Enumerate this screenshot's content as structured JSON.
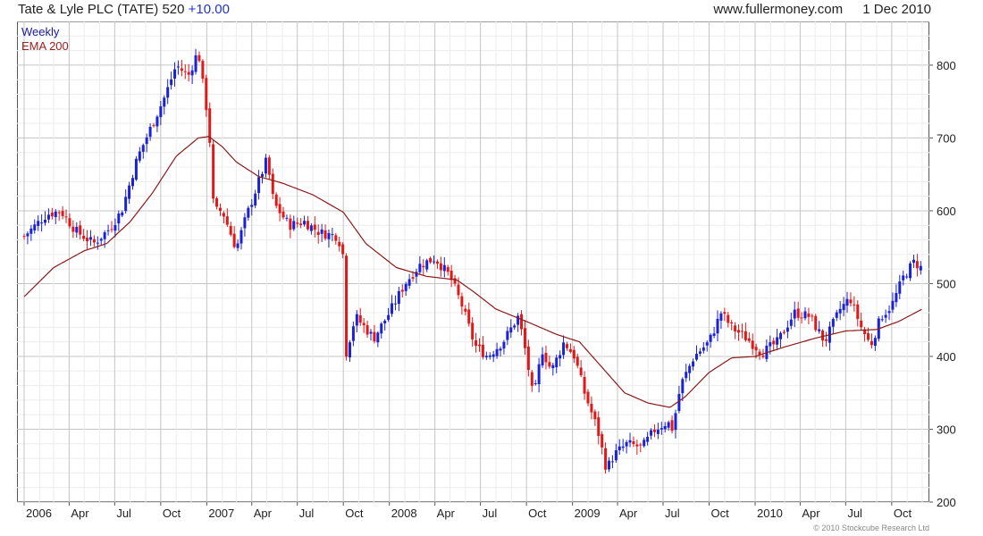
{
  "header": {
    "title": "Tate & Lyle PLC (TATE)",
    "price": "520",
    "change": "+10.00",
    "site": "www.fullermoney.com",
    "date": "1 Dec 2010"
  },
  "legend": {
    "series1": "Weekly",
    "series2": "EMA 200"
  },
  "copyright": "© 2010 Stockcube Research Ltd",
  "colors": {
    "up": "#1a22d8",
    "down": "#e01818",
    "ema": "#8b1a1a",
    "grid": "#d9d9d9",
    "frame": "#555555"
  },
  "chart_data": {
    "type": "candlestick",
    "frequency": "weekly",
    "start_date": "2006-01-01",
    "end_date": "2010-12-01",
    "ylim": [
      200,
      860
    ],
    "yaxis_position": "right",
    "yticks": [
      200,
      300,
      400,
      500,
      600,
      700,
      800
    ],
    "xtick_labels": [
      "2006",
      "Apr",
      "Jul",
      "Oct",
      "2007",
      "Apr",
      "Jul",
      "Oct",
      "2008",
      "Apr",
      "Jul",
      "Oct",
      "2009",
      "Apr",
      "Jul",
      "Oct",
      "2010",
      "Apr",
      "Jul",
      "Oct"
    ],
    "grid": true,
    "legend_position": "top-left",
    "close_keypoints": [
      {
        "date": "2006-01-01",
        "v": 565
      },
      {
        "date": "2006-02-15",
        "v": 595
      },
      {
        "date": "2006-03-15",
        "v": 600
      },
      {
        "date": "2006-04-15",
        "v": 572
      },
      {
        "date": "2006-05-20",
        "v": 555
      },
      {
        "date": "2006-06-20",
        "v": 575
      },
      {
        "date": "2006-07-15",
        "v": 600
      },
      {
        "date": "2006-08-15",
        "v": 672
      },
      {
        "date": "2006-09-15",
        "v": 720
      },
      {
        "date": "2006-10-10",
        "v": 758
      },
      {
        "date": "2006-11-01",
        "v": 800
      },
      {
        "date": "2006-11-25",
        "v": 785
      },
      {
        "date": "2006-12-15",
        "v": 820
      },
      {
        "date": "2006-12-25",
        "v": 770
      },
      {
        "date": "2007-01-05",
        "v": 720
      },
      {
        "date": "2007-01-15",
        "v": 600
      },
      {
        "date": "2007-02-01",
        "v": 600
      },
      {
        "date": "2007-03-01",
        "v": 548
      },
      {
        "date": "2007-03-20",
        "v": 590
      },
      {
        "date": "2007-04-20",
        "v": 650
      },
      {
        "date": "2007-05-01",
        "v": 670
      },
      {
        "date": "2007-05-15",
        "v": 610
      },
      {
        "date": "2007-06-15",
        "v": 580
      },
      {
        "date": "2007-07-15",
        "v": 585
      },
      {
        "date": "2007-08-15",
        "v": 570
      },
      {
        "date": "2007-09-20",
        "v": 565
      },
      {
        "date": "2007-09-30",
        "v": 540
      },
      {
        "date": "2007-10-05",
        "v": 400
      },
      {
        "date": "2007-10-25",
        "v": 455
      },
      {
        "date": "2007-12-01",
        "v": 425
      },
      {
        "date": "2008-01-01",
        "v": 460
      },
      {
        "date": "2008-02-01",
        "v": 500
      },
      {
        "date": "2008-03-01",
        "v": 525
      },
      {
        "date": "2008-04-01",
        "v": 535
      },
      {
        "date": "2008-05-01",
        "v": 510
      },
      {
        "date": "2008-05-25",
        "v": 470
      },
      {
        "date": "2008-06-20",
        "v": 415
      },
      {
        "date": "2008-07-15",
        "v": 400
      },
      {
        "date": "2008-08-15",
        "v": 420
      },
      {
        "date": "2008-09-15",
        "v": 455
      },
      {
        "date": "2008-10-01",
        "v": 400
      },
      {
        "date": "2008-10-15",
        "v": 340
      },
      {
        "date": "2008-11-01",
        "v": 410
      },
      {
        "date": "2008-11-20",
        "v": 380
      },
      {
        "date": "2008-12-15",
        "v": 420
      },
      {
        "date": "2009-01-05",
        "v": 400
      },
      {
        "date": "2009-01-25",
        "v": 350
      },
      {
        "date": "2009-02-20",
        "v": 300
      },
      {
        "date": "2009-03-10",
        "v": 245
      },
      {
        "date": "2009-03-25",
        "v": 265
      },
      {
        "date": "2009-04-20",
        "v": 280
      },
      {
        "date": "2009-05-20",
        "v": 275
      },
      {
        "date": "2009-06-15",
        "v": 300
      },
      {
        "date": "2009-07-10",
        "v": 310
      },
      {
        "date": "2009-07-20",
        "v": 300
      },
      {
        "date": "2009-08-05",
        "v": 360
      },
      {
        "date": "2009-09-01",
        "v": 400
      },
      {
        "date": "2009-10-01",
        "v": 420
      },
      {
        "date": "2009-10-25",
        "v": 460
      },
      {
        "date": "2009-11-15",
        "v": 440
      },
      {
        "date": "2009-12-15",
        "v": 425
      },
      {
        "date": "2010-01-15",
        "v": 405
      },
      {
        "date": "2010-02-15",
        "v": 420
      },
      {
        "date": "2010-03-20",
        "v": 460
      },
      {
        "date": "2010-04-20",
        "v": 455
      },
      {
        "date": "2010-05-20",
        "v": 420
      },
      {
        "date": "2010-06-20",
        "v": 465
      },
      {
        "date": "2010-07-10",
        "v": 480
      },
      {
        "date": "2010-08-01",
        "v": 440
      },
      {
        "date": "2010-08-20",
        "v": 415
      },
      {
        "date": "2010-09-10",
        "v": 455
      },
      {
        "date": "2010-10-01",
        "v": 470
      },
      {
        "date": "2010-10-25",
        "v": 510
      },
      {
        "date": "2010-11-15",
        "v": 530
      },
      {
        "date": "2010-12-01",
        "v": 520
      }
    ],
    "ema200_keypoints": [
      {
        "date": "2006-01-01",
        "v": 482
      },
      {
        "date": "2006-03-01",
        "v": 522
      },
      {
        "date": "2006-05-01",
        "v": 545
      },
      {
        "date": "2006-06-15",
        "v": 555
      },
      {
        "date": "2006-08-01",
        "v": 585
      },
      {
        "date": "2006-09-15",
        "v": 625
      },
      {
        "date": "2006-11-01",
        "v": 675
      },
      {
        "date": "2006-12-15",
        "v": 700
      },
      {
        "date": "2007-01-05",
        "v": 702
      },
      {
        "date": "2007-02-01",
        "v": 688
      },
      {
        "date": "2007-03-01",
        "v": 667
      },
      {
        "date": "2007-04-15",
        "v": 647
      },
      {
        "date": "2007-06-01",
        "v": 638
      },
      {
        "date": "2007-08-01",
        "v": 622
      },
      {
        "date": "2007-10-01",
        "v": 598
      },
      {
        "date": "2007-11-15",
        "v": 555
      },
      {
        "date": "2008-01-15",
        "v": 522
      },
      {
        "date": "2008-03-15",
        "v": 510
      },
      {
        "date": "2008-05-15",
        "v": 505
      },
      {
        "date": "2008-06-15",
        "v": 490
      },
      {
        "date": "2008-08-01",
        "v": 465
      },
      {
        "date": "2008-10-01",
        "v": 448
      },
      {
        "date": "2008-12-01",
        "v": 430
      },
      {
        "date": "2009-01-15",
        "v": 420
      },
      {
        "date": "2009-03-01",
        "v": 385
      },
      {
        "date": "2009-04-15",
        "v": 350
      },
      {
        "date": "2009-06-01",
        "v": 336
      },
      {
        "date": "2009-07-15",
        "v": 330
      },
      {
        "date": "2009-08-15",
        "v": 345
      },
      {
        "date": "2009-10-01",
        "v": 378
      },
      {
        "date": "2009-11-15",
        "v": 398
      },
      {
        "date": "2010-01-01",
        "v": 400
      },
      {
        "date": "2010-03-01",
        "v": 413
      },
      {
        "date": "2010-05-01",
        "v": 425
      },
      {
        "date": "2010-07-01",
        "v": 435
      },
      {
        "date": "2010-09-01",
        "v": 437
      },
      {
        "date": "2010-10-15",
        "v": 448
      },
      {
        "date": "2010-12-01",
        "v": 465
      }
    ]
  }
}
